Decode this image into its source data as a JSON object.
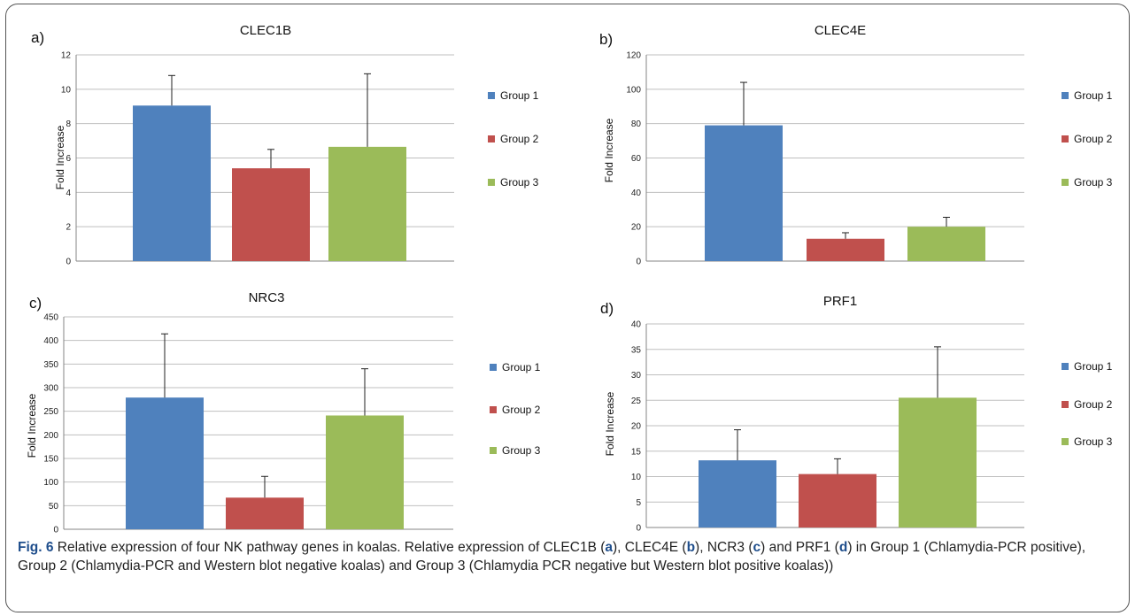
{
  "chart_data": [
    {
      "type": "bar",
      "panel": "a)",
      "title": "CLEC1B",
      "ylabel": "Fold Increase",
      "categories": [
        "Group 1",
        "Group 2",
        "Group 3"
      ],
      "values": [
        9.05,
        5.4,
        6.65
      ],
      "errors": [
        1.75,
        1.1,
        4.25
      ],
      "ylim": [
        0,
        12
      ],
      "yticks": [
        0,
        2,
        4,
        6,
        8,
        10,
        12
      ],
      "legend": [
        "Group 1",
        "Group 2",
        "Group 3"
      ],
      "legend_position": "right",
      "grid": true
    },
    {
      "type": "bar",
      "panel": "b)",
      "title": "CLEC4E",
      "ylabel": "Fold Increase",
      "categories": [
        "Group 1",
        "Group 2",
        "Group 3"
      ],
      "values": [
        79,
        13,
        20
      ],
      "errors": [
        25,
        3.5,
        5.5
      ],
      "ylim": [
        0,
        120
      ],
      "yticks": [
        0,
        20,
        40,
        60,
        80,
        100,
        120
      ],
      "legend": [
        "Group 1",
        "Group 2",
        "Group 3"
      ],
      "legend_position": "right",
      "grid": true
    },
    {
      "type": "bar",
      "panel": "c)",
      "title": "NRC3",
      "ylabel": "Fold Increase",
      "categories": [
        "Group 1",
        "Group 2",
        "Group 3"
      ],
      "values": [
        279,
        67,
        241
      ],
      "errors": [
        135,
        45,
        99
      ],
      "ylim": [
        0,
        450
      ],
      "yticks": [
        0,
        50,
        100,
        150,
        200,
        250,
        300,
        350,
        400,
        450
      ],
      "legend": [
        "Group 1",
        "Group 2",
        "Group 3"
      ],
      "legend_position": "right",
      "grid": true
    },
    {
      "type": "bar",
      "panel": "d)",
      "title": "PRF1",
      "ylabel": "Fold Increase",
      "categories": [
        "Group 1",
        "Group 2",
        "Group 3"
      ],
      "values": [
        13.2,
        10.5,
        25.5
      ],
      "errors": [
        6,
        3,
        10
      ],
      "ylim": [
        0,
        40
      ],
      "yticks": [
        0,
        5,
        10,
        15,
        20,
        25,
        30,
        35,
        40
      ],
      "legend": [
        "Group 1",
        "Group 2",
        "Group 3"
      ],
      "legend_position": "right",
      "grid": true
    }
  ],
  "colors": {
    "group1": "#4f81bd",
    "group2": "#c0504d",
    "group3": "#9bbb59",
    "grid": "#bfbfbf",
    "axis": "#868686"
  },
  "caption": {
    "figno": "Fig. 6",
    "part1": " Relative expression of four NK pathway genes in koalas. Relative expression of CLEC1B (",
    "a": "a",
    "part2": "), CLEC4E (",
    "b": "b",
    "part3": "), NCR3 (",
    "c": "c",
    "part4": ") and PRF1 (",
    "d": "d",
    "part5": ") in Group 1 (Chlamydia-PCR positive), Group 2 (Chlamydia-PCR and Western blot negative koalas) and Group 3 (Chlamydia PCR negative but Western blot positive koalas))"
  }
}
